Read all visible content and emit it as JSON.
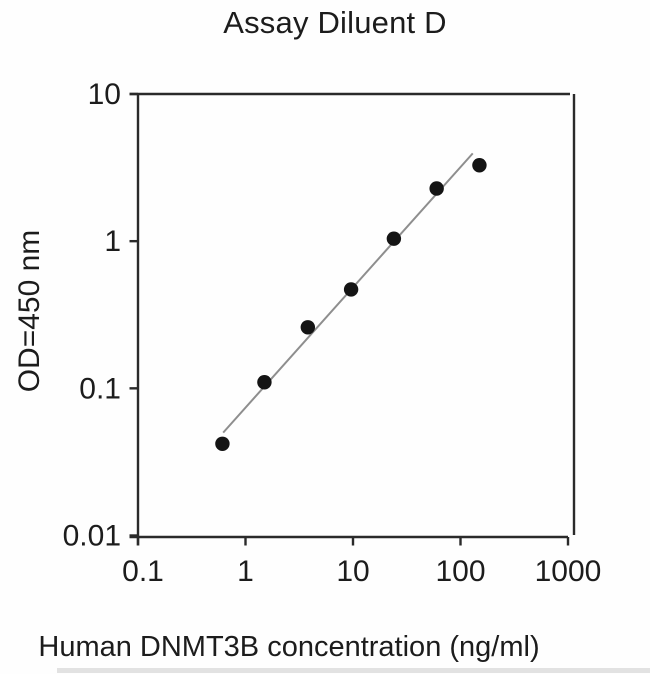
{
  "chart_data": {
    "type": "scatter",
    "title": "Assay Diluent D",
    "xlabel": "Human DNMT3B concentration (ng/ml)",
    "ylabel": "OD=450 nm",
    "x_scale": "log",
    "y_scale": "log",
    "xlim": [
      0.1,
      1000
    ],
    "ylim": [
      0.01,
      10
    ],
    "x_ticks": [
      0.1,
      1,
      10,
      100,
      1000
    ],
    "x_tick_labels": [
      "0.1",
      "1",
      "10",
      "100",
      "1000"
    ],
    "y_ticks": [
      0.01,
      0.1,
      1,
      10
    ],
    "y_tick_labels": [
      "0.01",
      "0.1",
      "1",
      "10"
    ],
    "grid": false,
    "legend": "none",
    "series": [
      {
        "name": "fit-line",
        "type": "line",
        "color": "#8e8e8e",
        "x": [
          0.62,
          130
        ],
        "y": [
          0.05,
          3.95
        ]
      },
      {
        "name": "standard-points",
        "type": "scatter",
        "marker": "filled-circle",
        "color": "#141414",
        "x": [
          0.61,
          1.5,
          3.8,
          9.6,
          24,
          60,
          150
        ],
        "y": [
          0.042,
          0.11,
          0.26,
          0.47,
          1.04,
          2.28,
          3.28
        ]
      }
    ],
    "colors": {
      "ink": "#222222",
      "axis": "#2a2a2a",
      "fit_line": "#8e8e8e",
      "marker": "#141414",
      "background": "#fefefe"
    }
  }
}
